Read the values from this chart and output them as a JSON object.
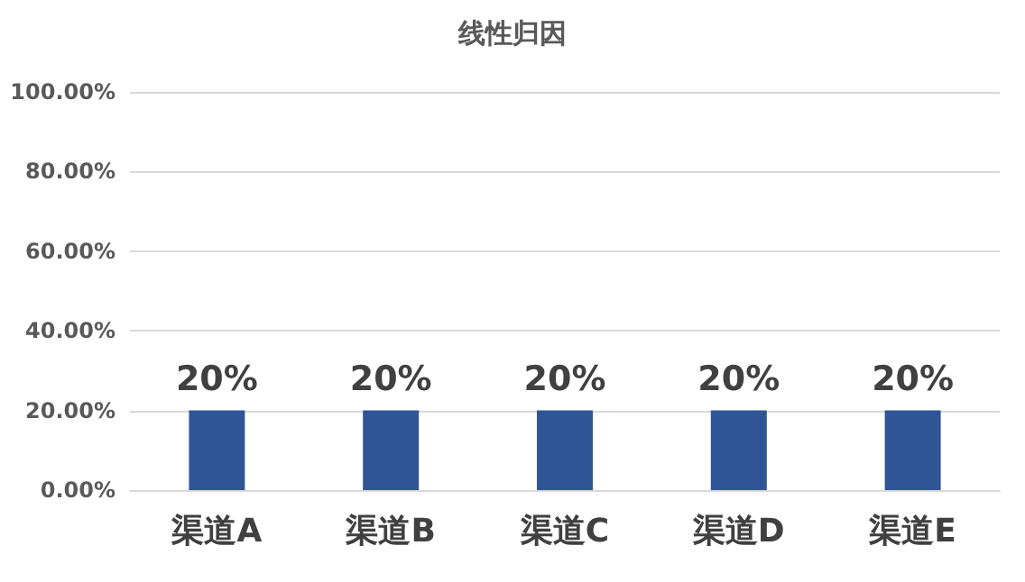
{
  "chart_data": {
    "type": "bar",
    "title": "线性归因",
    "categories": [
      "渠道A",
      "渠道B",
      "渠道C",
      "渠道D",
      "渠道E"
    ],
    "values": [
      20,
      20,
      20,
      20,
      20
    ],
    "color": "#2f5597",
    "value_labels": [
      "20%",
      "20%",
      "20%",
      "20%",
      "20%"
    ],
    "ylim": [
      0,
      100
    ],
    "yticks": [
      {
        "value": 0,
        "label": "0.00%"
      },
      {
        "value": 20,
        "label": "20.00%"
      },
      {
        "value": 40,
        "label": "40.00%"
      },
      {
        "value": 60,
        "label": "60.00%"
      },
      {
        "value": 80,
        "label": "80.00%"
      },
      {
        "value": 100,
        "label": "100.00%"
      }
    ],
    "grid": "y"
  }
}
